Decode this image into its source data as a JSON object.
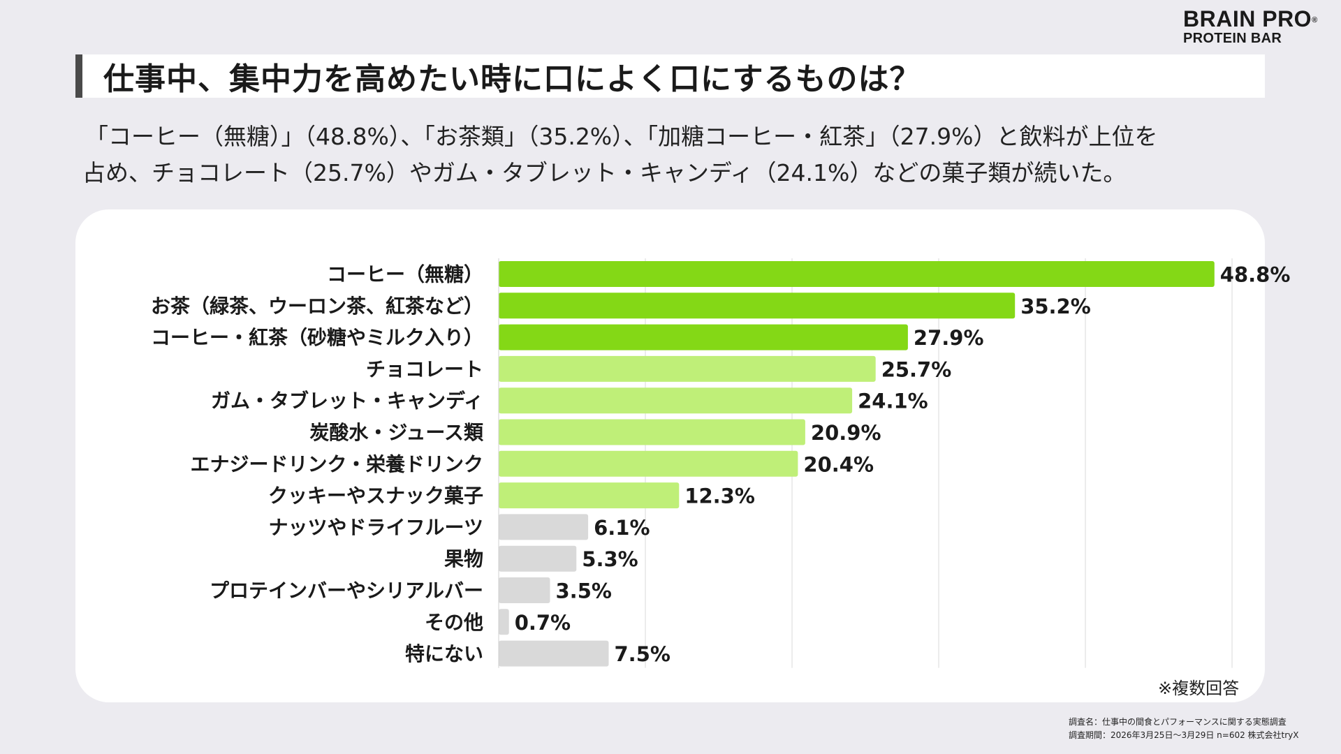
{
  "brand": {
    "line1": "BRAIN PRO",
    "reg": "®",
    "line2": "PROTEIN BAR"
  },
  "title": "仕事中、集中力を高めたい時に口によく口にするものは？",
  "subtitle": {
    "line1": "「コーヒー（無糖）」（48.8%）、「お茶類」（35.2%）、「加糖コーヒー・紅茶」（27.9%）と飲料が上位を",
    "line2": "占め、チョコレート（25.7%）やガム・タブレット・キャンディ（24.1%）などの菓子類が続いた。"
  },
  "note": "※複数回答",
  "footnote": {
    "line1": "調査名：仕事中の間食とパフォーマンスに関する実態調査",
    "line2": "調査期間：2026年3月25日〜3月29日 n=602 株式会社tryX"
  },
  "colors": {
    "dark_green": "#84d816",
    "light_green": "#bfef78",
    "gray": "#d9d9d9",
    "grid": "#d8d8d8"
  },
  "chart_data": {
    "type": "bar",
    "orientation": "horizontal",
    "title": "仕事中、集中力を高めたい時に口によく口にするものは？",
    "categories": [
      "コーヒー（無糖）",
      "お茶（緑茶、ウーロン茶、紅茶など）",
      "コーヒー・紅茶（砂糖やミルク入り）",
      "チョコレート",
      "ガム・タブレット・キャンディ",
      "炭酸水・ジュース類",
      "エナジードリンク・栄養ドリンク",
      "クッキーやスナック菓子",
      "ナッツやドライフルーツ",
      "果物",
      "プロテインバーやシリアルバー",
      "その他",
      "特にない"
    ],
    "values": [
      48.8,
      35.2,
      27.9,
      25.7,
      24.1,
      20.9,
      20.4,
      12.3,
      6.1,
      5.3,
      3.5,
      0.7,
      7.5
    ],
    "value_labels": [
      "48.8%",
      "35.2%",
      "27.9%",
      "25.7%",
      "24.1%",
      "20.9%",
      "20.4%",
      "12.3%",
      "6.1%",
      "5.3%",
      "3.5%",
      "0.7%",
      "7.5%"
    ],
    "bar_group": [
      "dark",
      "dark",
      "dark",
      "light",
      "light",
      "light",
      "light",
      "light",
      "gray",
      "gray",
      "gray",
      "gray",
      "gray"
    ],
    "xlim": [
      0,
      50
    ],
    "grid_step": 10,
    "grid": true,
    "unit": "%"
  }
}
